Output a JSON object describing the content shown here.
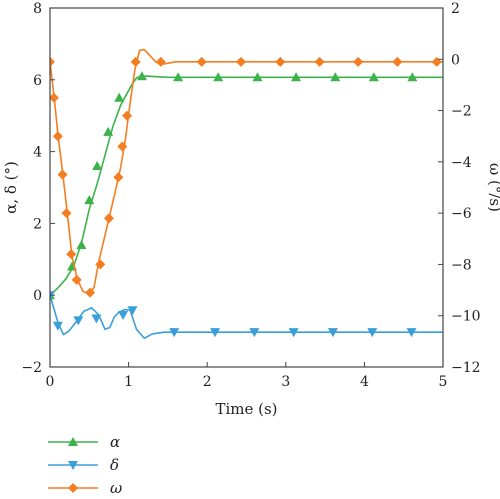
{
  "chart_data": {
    "type": "line",
    "xlabel": "Time (s)",
    "ylabel_left": "α, δ (°)",
    "ylabel_right": "ω (°/s)",
    "xlim": [
      0,
      5
    ],
    "ylim_left": [
      -2,
      8
    ],
    "ylim_right": [
      -12,
      2
    ],
    "xticks": [
      "0",
      "1",
      "2",
      "3",
      "4",
      "5"
    ],
    "yticks_left": [
      "−2",
      "0",
      "2",
      "4",
      "6",
      "8"
    ],
    "yticks_right": [
      "−12",
      "−10",
      "−8",
      "−6",
      "−4",
      "−2",
      "0",
      "2"
    ],
    "grid": false,
    "legend_position": "below",
    "colors": {
      "alpha": "#3cb34a",
      "delta": "#3a9fd9",
      "omega": "#f47d20"
    },
    "series": [
      {
        "name": "α",
        "key": "alpha",
        "axis": "left",
        "marker": "triangle-up",
        "curve": [
          [
            0,
            0
          ],
          [
            0.1,
            0.2
          ],
          [
            0.2,
            0.45
          ],
          [
            0.3,
            0.8
          ],
          [
            0.4,
            1.45
          ],
          [
            0.5,
            2.4
          ],
          [
            0.6,
            3.1
          ],
          [
            0.7,
            3.9
          ],
          [
            0.8,
            4.7
          ],
          [
            0.9,
            5.3
          ],
          [
            1.0,
            5.7
          ],
          [
            1.05,
            5.9
          ],
          [
            1.1,
            6.05
          ],
          [
            1.15,
            6.1
          ],
          [
            1.25,
            6.1
          ],
          [
            1.5,
            6.07
          ],
          [
            2,
            6.07
          ],
          [
            5,
            6.07
          ]
        ],
        "markers": [
          [
            0,
            0
          ],
          [
            0.28,
            0.8
          ],
          [
            0.4,
            1.4
          ],
          [
            0.5,
            2.65
          ],
          [
            0.6,
            3.6
          ],
          [
            0.74,
            4.55
          ],
          [
            0.88,
            5.5
          ],
          [
            1.17,
            6.1
          ],
          [
            1.63,
            6.07
          ],
          [
            2.14,
            6.07
          ],
          [
            2.64,
            6.07
          ],
          [
            3.13,
            6.07
          ],
          [
            3.63,
            6.07
          ],
          [
            4.12,
            6.07
          ],
          [
            4.61,
            6.07
          ]
        ]
      },
      {
        "name": "δ",
        "key": "delta",
        "axis": "left",
        "marker": "triangle-down",
        "curve": [
          [
            0,
            0
          ],
          [
            0.04,
            -0.3
          ],
          [
            0.1,
            -0.75
          ],
          [
            0.17,
            -1.1
          ],
          [
            0.24,
            -1.0
          ],
          [
            0.33,
            -0.75
          ],
          [
            0.43,
            -0.45
          ],
          [
            0.53,
            -0.35
          ],
          [
            0.62,
            -0.55
          ],
          [
            0.7,
            -0.95
          ],
          [
            0.76,
            -0.9
          ],
          [
            0.82,
            -0.6
          ],
          [
            0.88,
            -0.47
          ],
          [
            0.95,
            -0.4
          ],
          [
            1.02,
            -0.42
          ],
          [
            1.1,
            -0.95
          ],
          [
            1.2,
            -1.2
          ],
          [
            1.3,
            -1.08
          ],
          [
            1.45,
            -1.03
          ],
          [
            2,
            -1.03
          ],
          [
            5,
            -1.03
          ]
        ],
        "markers": [
          [
            0,
            0
          ],
          [
            0.1,
            -0.85
          ],
          [
            0.36,
            -0.7
          ],
          [
            0.59,
            -0.65
          ],
          [
            0.93,
            -0.55
          ],
          [
            1.05,
            -0.42
          ],
          [
            1.58,
            -1.03
          ],
          [
            2.1,
            -1.03
          ],
          [
            2.6,
            -1.03
          ],
          [
            3.1,
            -1.03
          ],
          [
            3.6,
            -1.03
          ],
          [
            4.1,
            -1.03
          ],
          [
            4.6,
            -1.03
          ]
        ]
      },
      {
        "name": "ω",
        "key": "omega",
        "axis": "right",
        "marker": "diamond",
        "curve": [
          [
            0,
            -0.1
          ],
          [
            0.05,
            -1.4
          ],
          [
            0.1,
            -2.9
          ],
          [
            0.16,
            -4.4
          ],
          [
            0.22,
            -6.0
          ],
          [
            0.28,
            -7.7
          ],
          [
            0.35,
            -8.6
          ],
          [
            0.42,
            -9.05
          ],
          [
            0.5,
            -9.15
          ],
          [
            0.56,
            -8.9
          ],
          [
            0.62,
            -7.9
          ],
          [
            0.72,
            -6.6
          ],
          [
            0.82,
            -5.3
          ],
          [
            0.9,
            -4.2
          ],
          [
            0.96,
            -3.1
          ],
          [
            1.02,
            -1.7
          ],
          [
            1.08,
            -0.4
          ],
          [
            1.14,
            0.35
          ],
          [
            1.2,
            0.38
          ],
          [
            1.27,
            0.15
          ],
          [
            1.35,
            -0.12
          ],
          [
            1.45,
            -0.18
          ],
          [
            1.6,
            -0.1
          ],
          [
            2,
            -0.1
          ],
          [
            5,
            -0.1
          ]
        ],
        "markers": [
          [
            0,
            -0.1
          ],
          [
            0.05,
            -1.5
          ],
          [
            0.1,
            -3.0
          ],
          [
            0.16,
            -4.5
          ],
          [
            0.21,
            -6.0
          ],
          [
            0.27,
            -7.6
          ],
          [
            0.34,
            -8.6
          ],
          [
            0.51,
            -9.1
          ],
          [
            0.64,
            -8.0
          ],
          [
            0.75,
            -6.2
          ],
          [
            0.87,
            -4.6
          ],
          [
            0.92,
            -3.4
          ],
          [
            0.98,
            -2.2
          ],
          [
            1.09,
            -0.1
          ],
          [
            1.41,
            -0.1
          ],
          [
            1.93,
            -0.1
          ],
          [
            2.43,
            -0.1
          ],
          [
            2.93,
            -0.1
          ],
          [
            3.43,
            -0.1
          ],
          [
            3.92,
            -0.1
          ],
          [
            4.42,
            -0.1
          ],
          [
            4.92,
            -0.1
          ]
        ]
      }
    ]
  }
}
